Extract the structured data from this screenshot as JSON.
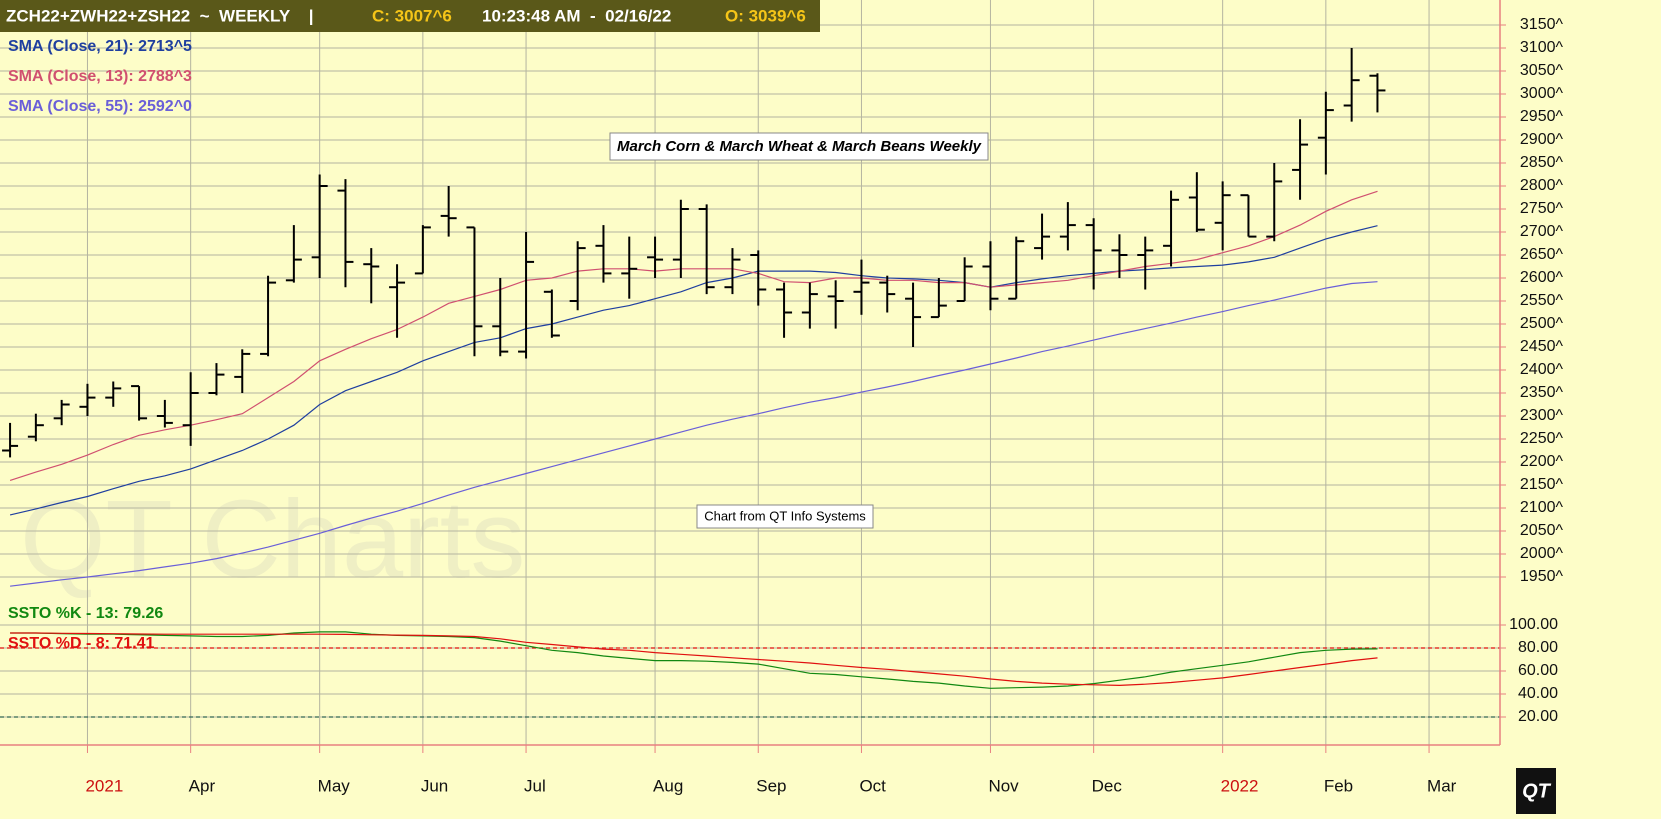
{
  "chart_data": [
    {
      "type": "ohlc",
      "header": [
        "ZCH22+ZWH22+ZSH22  ~  WEEKLY    |",
        "C: 3007^6",
        "10:23:48 AM  -  02/16/22",
        "O: 3039^6"
      ],
      "title": "March Corn & March Wheat & March Beans Weekly",
      "annotation": "Chart from QT Info Systems",
      "watermark": "QT Charts",
      "logo": "QT",
      "bar_color": "#000000",
      "open": [
        2225,
        2255,
        2295,
        2320,
        2340,
        2365,
        2300,
        2280,
        2350,
        2385,
        2435,
        2595,
        2645,
        2790,
        2630,
        2580,
        2610,
        2735,
        2710,
        2495,
        2440,
        2570,
        2550,
        2670,
        2610,
        2645,
        2640,
        2750,
        2580,
        2650,
        2575,
        2525,
        2560,
        2570,
        2590,
        2555,
        2515,
        2550,
        2625,
        2555,
        2665,
        2690,
        2715,
        2660,
        2650,
        2670,
        2775,
        2720,
        2780,
        2690,
        2835,
        2905,
        2975,
        3039.75
      ],
      "high": [
        2285,
        2305,
        2335,
        2370,
        2375,
        2365,
        2335,
        2395,
        2415,
        2445,
        2605,
        2715,
        2825,
        2815,
        2665,
        2630,
        2715,
        2800,
        2710,
        2600,
        2700,
        2575,
        2680,
        2715,
        2690,
        2690,
        2770,
        2760,
        2665,
        2660,
        2590,
        2590,
        2595,
        2640,
        2605,
        2590,
        2600,
        2645,
        2680,
        2690,
        2740,
        2765,
        2730,
        2695,
        2690,
        2790,
        2830,
        2810,
        2780,
        2850,
        2945,
        3005,
        3100,
        3045
      ],
      "low": [
        2210,
        2245,
        2280,
        2300,
        2320,
        2290,
        2275,
        2235,
        2345,
        2350,
        2430,
        2590,
        2600,
        2580,
        2545,
        2470,
        2610,
        2690,
        2430,
        2430,
        2425,
        2470,
        2530,
        2590,
        2555,
        2600,
        2600,
        2565,
        2565,
        2540,
        2470,
        2490,
        2490,
        2520,
        2525,
        2450,
        2515,
        2550,
        2530,
        2555,
        2640,
        2660,
        2575,
        2600,
        2575,
        2625,
        2700,
        2660,
        2690,
        2680,
        2770,
        2825,
        2940,
        2960
      ],
      "close": [
        2235,
        2280,
        2325,
        2340,
        2360,
        2295,
        2285,
        2350,
        2390,
        2435,
        2590,
        2640,
        2800,
        2635,
        2625,
        2590,
        2710,
        2730,
        2495,
        2440,
        2635,
        2475,
        2665,
        2610,
        2620,
        2640,
        2750,
        2580,
        2640,
        2575,
        2525,
        2565,
        2550,
        2590,
        2565,
        2515,
        2540,
        2625,
        2555,
        2680,
        2690,
        2715,
        2660,
        2650,
        2660,
        2770,
        2705,
        2780,
        2690,
        2810,
        2890,
        2965,
        3030,
        3007.75
      ],
      "series": [
        {
          "name": "SMA (Close, 21): 2713^5",
          "color": "#1f3f9f",
          "values": [
            2085,
            2098,
            2112,
            2125,
            2142,
            2158,
            2170,
            2185,
            2205,
            2225,
            2250,
            2280,
            2325,
            2355,
            2375,
            2395,
            2420,
            2440,
            2460,
            2470,
            2490,
            2500,
            2515,
            2530,
            2540,
            2555,
            2570,
            2590,
            2600,
            2615,
            2615,
            2615,
            2612,
            2605,
            2600,
            2598,
            2595,
            2590,
            2580,
            2590,
            2598,
            2605,
            2610,
            2615,
            2618,
            2622,
            2625,
            2628,
            2635,
            2645,
            2665,
            2685,
            2700,
            2713.6
          ]
        },
        {
          "name": "SMA (Close, 13): 2788^3",
          "color": "#d05070",
          "values": [
            2160,
            2178,
            2195,
            2215,
            2238,
            2258,
            2270,
            2280,
            2292,
            2305,
            2340,
            2375,
            2420,
            2445,
            2468,
            2488,
            2515,
            2545,
            2560,
            2575,
            2595,
            2600,
            2615,
            2620,
            2620,
            2615,
            2620,
            2620,
            2620,
            2610,
            2592,
            2590,
            2600,
            2600,
            2595,
            2595,
            2590,
            2590,
            2580,
            2585,
            2590,
            2595,
            2605,
            2615,
            2625,
            2632,
            2640,
            2655,
            2670,
            2690,
            2715,
            2745,
            2770,
            2788.4
          ]
        },
        {
          "name": "SMA (Close, 55): 2592^0",
          "color": "#6a5fd8",
          "values": [
            1930,
            1937,
            1944,
            1950,
            1957,
            1964,
            1972,
            1980,
            1990,
            2002,
            2015,
            2030,
            2045,
            2062,
            2078,
            2093,
            2110,
            2128,
            2145,
            2160,
            2175,
            2190,
            2205,
            2220,
            2235,
            2250,
            2265,
            2280,
            2293,
            2305,
            2318,
            2330,
            2340,
            2352,
            2363,
            2375,
            2388,
            2400,
            2413,
            2426,
            2440,
            2452,
            2465,
            2478,
            2490,
            2502,
            2515,
            2527,
            2540,
            2552,
            2565,
            2578,
            2588,
            2592
          ]
        }
      ],
      "xlim": [
        -0.39,
        57.75
      ],
      "xticks": [
        {
          "value": 3,
          "label": "2021"
        },
        {
          "value": 7,
          "label": "Apr"
        },
        {
          "value": 12,
          "label": "May"
        },
        {
          "value": 16,
          "label": "Jun"
        },
        {
          "value": 20,
          "label": "Jul"
        },
        {
          "value": 25,
          "label": "Aug"
        },
        {
          "value": 29,
          "label": "Sep"
        },
        {
          "value": 33,
          "label": "Oct"
        },
        {
          "value": 38,
          "label": "Nov"
        },
        {
          "value": 42,
          "label": "Dec"
        },
        {
          "value": 47,
          "label": "2022"
        },
        {
          "value": 51,
          "label": "Feb"
        },
        {
          "value": 55,
          "label": "Mar"
        }
      ],
      "ylim": [
        1900,
        3200
      ],
      "yticks": [
        {
          "value": 3150,
          "label": "3150^"
        },
        {
          "value": 3100,
          "label": "3100^"
        },
        {
          "value": 3050,
          "label": "3050^"
        },
        {
          "value": 3000,
          "label": "3000^"
        },
        {
          "value": 2950,
          "label": "2950^"
        },
        {
          "value": 2900,
          "label": "2900^"
        },
        {
          "value": 2850,
          "label": "2850^"
        },
        {
          "value": 2800,
          "label": "2800^"
        },
        {
          "value": 2750,
          "label": "2750^"
        },
        {
          "value": 2700,
          "label": "2700^"
        },
        {
          "value": 2650,
          "label": "2650^"
        },
        {
          "value": 2600,
          "label": "2600^"
        },
        {
          "value": 2550,
          "label": "2550^"
        },
        {
          "value": 2500,
          "label": "2500^"
        },
        {
          "value": 2450,
          "label": "2450^"
        },
        {
          "value": 2400,
          "label": "2400^"
        },
        {
          "value": 2350,
          "label": "2350^"
        },
        {
          "value": 2300,
          "label": "2300^"
        },
        {
          "value": 2250,
          "label": "2250^"
        },
        {
          "value": 2200,
          "label": "2200^"
        },
        {
          "value": 2150,
          "label": "2150^"
        },
        {
          "value": 2100,
          "label": "2100^"
        },
        {
          "value": 2050,
          "label": "2050^"
        },
        {
          "value": 2000,
          "label": "2000^"
        },
        {
          "value": 1950,
          "label": "1950^"
        }
      ],
      "grid": true
    },
    {
      "type": "line",
      "series": [
        {
          "name": "SSTO %K - 13: 79.26",
          "color": "#118811",
          "values": [
            93,
            93,
            92.5,
            92,
            92,
            91.5,
            91,
            90.5,
            90,
            90,
            91,
            93,
            94,
            94,
            92,
            91,
            90.5,
            90,
            89,
            86,
            82,
            78,
            76,
            73,
            71,
            69,
            69,
            68.5,
            67.5,
            66,
            62,
            58,
            57,
            55,
            53,
            51,
            49.5,
            47,
            45,
            45.5,
            46,
            47,
            49,
            52,
            55,
            59,
            62,
            65,
            68,
            72,
            76,
            78,
            79,
            79.26
          ]
        },
        {
          "name": "SSTO %D - 8: 71.41",
          "color": "#e01010",
          "values": [
            93,
            93,
            92.8,
            92.6,
            92.4,
            92.2,
            92,
            92,
            92,
            92,
            92,
            92,
            92,
            91.8,
            91.5,
            91.2,
            91,
            90.5,
            90,
            88,
            85,
            83,
            81,
            79,
            78,
            76,
            74.5,
            73,
            71.5,
            70,
            68.5,
            67,
            65,
            63,
            61.5,
            59.5,
            57.5,
            55.5,
            53,
            51,
            49.5,
            48.5,
            48,
            47.5,
            48.5,
            50,
            52,
            54,
            57,
            60,
            63,
            66,
            69,
            71.41
          ]
        }
      ],
      "hlines": [
        {
          "value": 80,
          "color": "#e01010"
        },
        {
          "value": 20,
          "color": "#336655"
        }
      ],
      "ylim": [
        0,
        120
      ],
      "yticks": [
        {
          "value": 100,
          "label": "100.00"
        },
        {
          "value": 80,
          "label": "80.00"
        },
        {
          "value": 60,
          "label": "60.00"
        },
        {
          "value": 40,
          "label": "40.00"
        },
        {
          "value": 20,
          "label": "20.00"
        }
      ],
      "grid": true
    }
  ]
}
